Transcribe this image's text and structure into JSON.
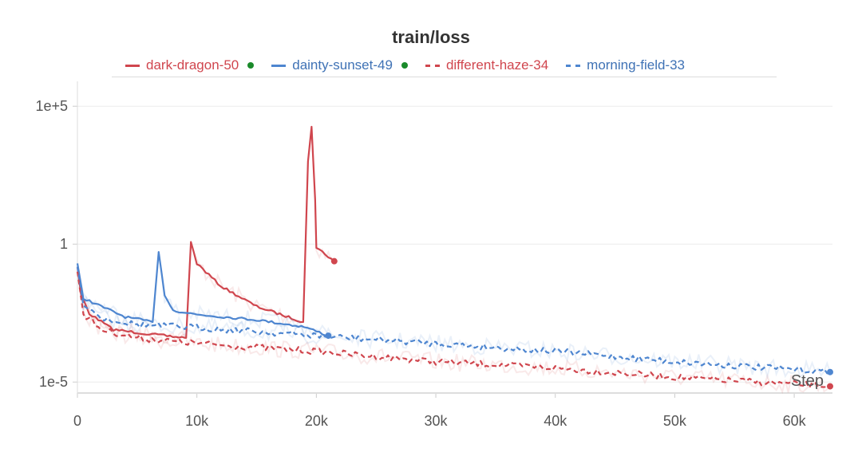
{
  "chart_data": {
    "type": "line",
    "title": "train/loss",
    "xlabel": "Step",
    "ylabel": "",
    "yscale": "log",
    "xlim": [
      0,
      63000
    ],
    "ylim": [
      4e-06,
      800000
    ],
    "grid": true,
    "legend_position": "top",
    "x_ticks": [
      "0",
      "10k",
      "20k",
      "30k",
      "40k",
      "50k",
      "60k"
    ],
    "x_tick_values": [
      0,
      10000,
      20000,
      30000,
      40000,
      50000,
      60000
    ],
    "y_ticks": [
      "1e+5",
      "1",
      "1e-5"
    ],
    "y_tick_values": [
      100000,
      1,
      1e-05
    ],
    "series": [
      {
        "name": "dark-dragon-50",
        "color": "#d0464e",
        "style": "solid",
        "running": true,
        "points": [
          [
            0,
            0.15
          ],
          [
            300,
            0.015
          ],
          [
            1000,
            0.003
          ],
          [
            3000,
            0.0008
          ],
          [
            6000,
            0.00055
          ],
          [
            9000,
            0.0004
          ],
          [
            9100,
            0.0004
          ],
          [
            9500,
            1.2
          ],
          [
            10000,
            0.2
          ],
          [
            12000,
            0.03
          ],
          [
            15000,
            0.0055
          ],
          [
            18900,
            0.0015
          ],
          [
            19300,
            1000
          ],
          [
            19600,
            18000
          ],
          [
            19900,
            40
          ],
          [
            20000,
            0.77
          ],
          [
            21500,
            0.24
          ]
        ]
      },
      {
        "name": "dainty-sunset-49",
        "color": "#4e86d0",
        "style": "solid",
        "running": true,
        "points": [
          [
            0,
            0.2
          ],
          [
            500,
            0.011
          ],
          [
            2000,
            0.0055
          ],
          [
            4000,
            0.0023
          ],
          [
            6300,
            0.0015
          ],
          [
            6800,
            0.52
          ],
          [
            7300,
            0.015
          ],
          [
            8000,
            0.004
          ],
          [
            10000,
            0.0028
          ],
          [
            15000,
            0.0018
          ],
          [
            19000,
            0.001
          ],
          [
            21000,
            0.00048
          ]
        ]
      },
      {
        "name": "different-haze-34",
        "color": "#d0464e",
        "style": "dashed",
        "running": false,
        "points": [
          [
            0,
            0.1
          ],
          [
            500,
            0.003
          ],
          [
            2000,
            0.0008
          ],
          [
            5000,
            0.0004
          ],
          [
            10000,
            0.00025
          ],
          [
            20000,
            0.00013
          ],
          [
            30000,
            5.5e-05
          ],
          [
            40000,
            3.2e-05
          ],
          [
            50000,
            1.5e-05
          ],
          [
            63000,
            7e-06
          ]
        ]
      },
      {
        "name": "morning-field-33",
        "color": "#4e86d0",
        "style": "dashed",
        "running": false,
        "points": [
          [
            0,
            0.15
          ],
          [
            500,
            0.0076
          ],
          [
            2000,
            0.0021
          ],
          [
            5000,
            0.0012
          ],
          [
            10000,
            0.00095
          ],
          [
            20000,
            0.00048
          ],
          [
            30000,
            0.00025
          ],
          [
            40000,
            0.00013
          ],
          [
            50000,
            5.5e-05
          ],
          [
            63000,
            2.3e-05
          ]
        ]
      }
    ]
  }
}
